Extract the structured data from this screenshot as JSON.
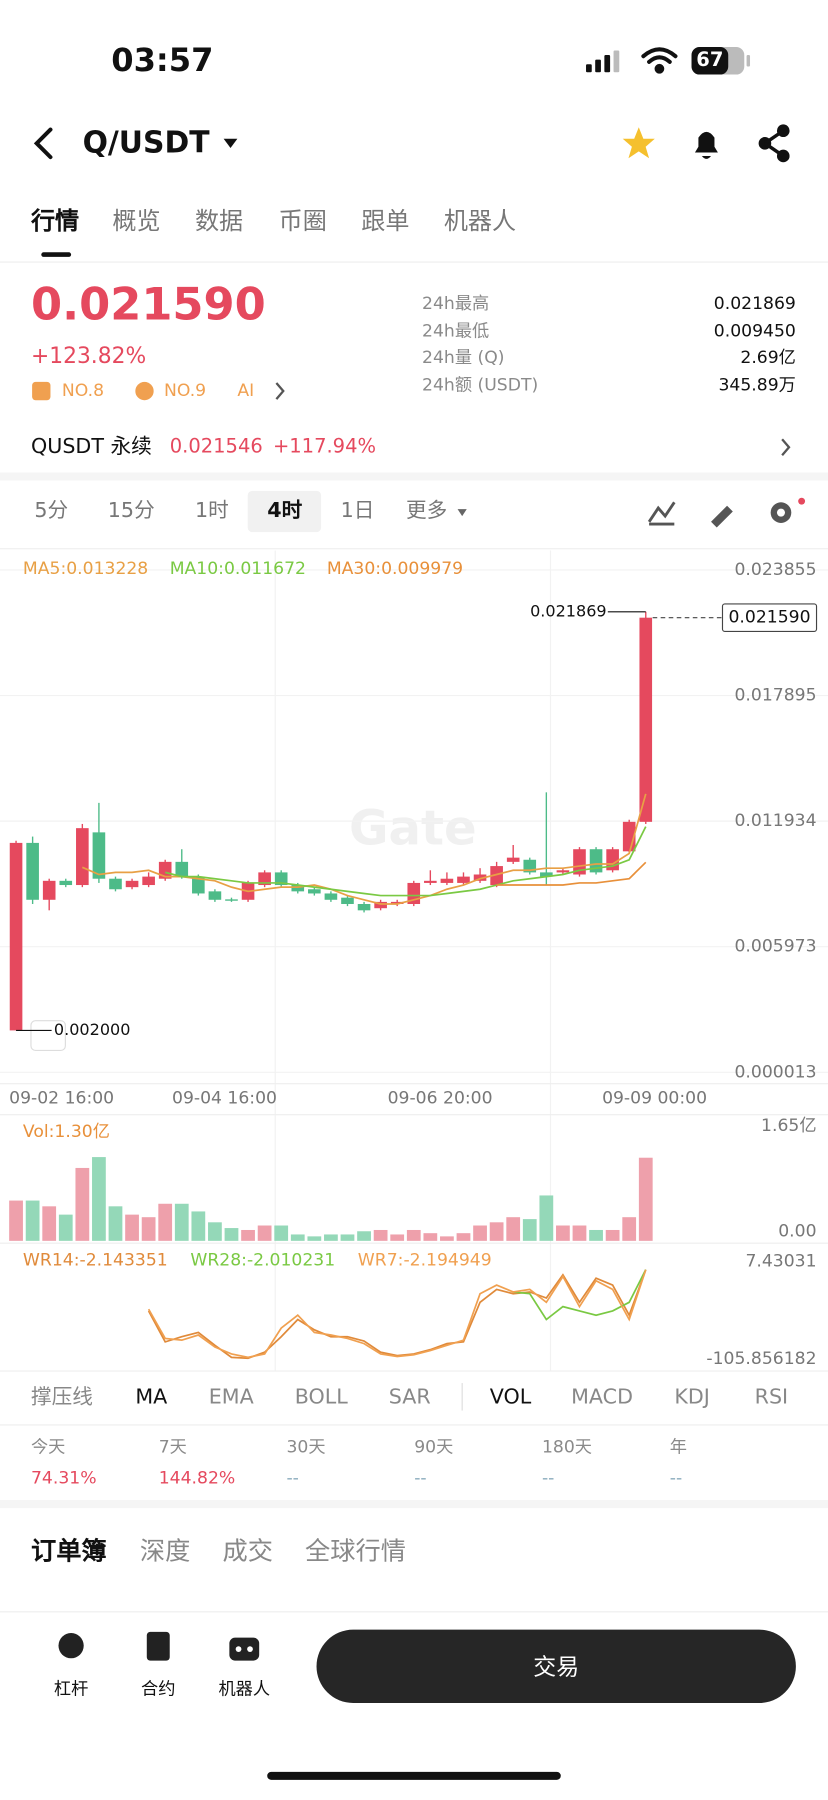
{
  "status_bar": {
    "time": "03:57",
    "battery": "67"
  },
  "header": {
    "pair": "Q/USDT"
  },
  "tabs": [
    "行情",
    "概览",
    "数据",
    "币圈",
    "跟单",
    "机器人"
  ],
  "price": {
    "last": "0.021590",
    "change": "+123.82%",
    "badges": [
      "NO.8",
      "NO.9",
      "AI"
    ]
  },
  "stats": [
    {
      "label": "24h最高",
      "value": "0.021869"
    },
    {
      "label": "24h最低",
      "value": "0.009450"
    },
    {
      "label": "24h量 (Q)",
      "value": "2.69亿"
    },
    {
      "label": "24h额 (USDT)",
      "value": "345.89万"
    }
  ],
  "perpetual": {
    "name": "QUSDT 永续",
    "price": "0.021546",
    "change": "+117.94%"
  },
  "intervals": [
    "5分",
    "15分",
    "1时",
    "4时",
    "1日",
    "更多"
  ],
  "chart": {
    "type": "candlestick",
    "watermark": "Gate",
    "ma_labels": [
      "MA5:0.013228",
      "MA10:0.011672",
      "MA30:0.009979"
    ],
    "x_labels": [
      "09-02 16:00",
      "09-04 16:00",
      "09-06 20:00",
      "09-09 00:00"
    ],
    "ylim": [
      1.3e-05,
      0.023855
    ],
    "yticks": [
      0.023855,
      0.017895,
      0.011934,
      0.005973,
      1.3e-05
    ],
    "current_price": {
      "value": 0.02159,
      "label": "0.021590"
    },
    "high_marker": 0.021869,
    "low_marker": {
      "value": 0.002,
      "label": "0.002000"
    },
    "up_color": "#e5495e",
    "down_color": "#4dbb88",
    "open": [
      0.002,
      0.0109,
      0.0082,
      0.0091,
      0.0089,
      0.0114,
      0.0092,
      0.0088,
      0.0089,
      0.0092,
      0.01,
      0.0093,
      0.0086,
      0.00822,
      0.0082,
      0.0089,
      0.0095,
      0.0089,
      0.0087,
      0.0085,
      0.0083,
      0.008,
      0.0078,
      0.008,
      0.008,
      0.009,
      0.009,
      0.009,
      0.0091,
      0.0089,
      0.01,
      0.0101,
      0.0095,
      0.0095,
      0.0094,
      0.0106,
      0.0096,
      0.0105,
      0.0119
    ],
    "high": [
      0.011,
      0.0112,
      0.0092,
      0.0092,
      0.0118,
      0.0128,
      0.0093,
      0.0092,
      0.0095,
      0.0101,
      0.0106,
      0.0094,
      0.0087,
      0.0083,
      0.0091,
      0.0096,
      0.0096,
      0.009,
      0.0088,
      0.0086,
      0.0084,
      0.0081,
      0.0082,
      0.0082,
      0.0091,
      0.0096,
      0.0095,
      0.0095,
      0.0097,
      0.01,
      0.0108,
      0.0102,
      0.0133,
      0.0097,
      0.0107,
      0.0107,
      0.0107,
      0.012,
      0.021869
    ],
    "low": [
      0.002,
      0.008,
      0.0077,
      0.0088,
      0.0088,
      0.009,
      0.0086,
      0.0087,
      0.0088,
      0.0091,
      0.0092,
      0.0084,
      0.0081,
      0.0081,
      0.0081,
      0.0088,
      0.0088,
      0.0085,
      0.0084,
      0.0081,
      0.0079,
      0.0076,
      0.0077,
      0.0079,
      0.0079,
      0.0089,
      0.0089,
      0.0089,
      0.009,
      0.0088,
      0.0099,
      0.0094,
      0.0089,
      0.0094,
      0.0093,
      0.0094,
      0.0095,
      0.0104,
      0.0118
    ],
    "close": [
      0.0109,
      0.0082,
      0.0091,
      0.0089,
      0.0116,
      0.0092,
      0.0087,
      0.0091,
      0.0093,
      0.01,
      0.0093,
      0.0085,
      0.0082,
      0.0082,
      0.009,
      0.0095,
      0.0089,
      0.0086,
      0.0085,
      0.0082,
      0.008,
      0.0077,
      0.0081,
      0.0081,
      0.009,
      0.0091,
      0.0092,
      0.0093,
      0.0094,
      0.0098,
      0.0102,
      0.0095,
      0.0093,
      0.0096,
      0.0106,
      0.0095,
      0.0106,
      0.0119,
      0.02159
    ],
    "ma_series": [
      {
        "name": "MA5",
        "color": "#e8a045",
        "values": [
          null,
          null,
          null,
          null,
          0.00974,
          0.0094,
          0.0095,
          0.0095,
          0.0096,
          0.0093,
          0.0093,
          0.0092,
          0.0091,
          0.0088,
          0.0086,
          0.0087,
          0.0088,
          0.0088,
          0.0089,
          0.0087,
          0.0084,
          0.0082,
          0.008,
          0.008,
          0.0082,
          0.0084,
          0.0087,
          0.0089,
          0.0092,
          0.0094,
          0.0096,
          0.0096,
          0.0097,
          0.0097,
          0.0098,
          0.0099,
          0.0099,
          0.0104,
          0.013228
        ]
      },
      {
        "name": "MA10",
        "color": "#7ac943",
        "values": [
          null,
          null,
          null,
          null,
          null,
          null,
          null,
          null,
          null,
          0.0095,
          0.0093,
          0.0093,
          0.0092,
          0.0091,
          0.009,
          0.009,
          0.009,
          0.0089,
          0.0088,
          0.0087,
          0.0086,
          0.0085,
          0.0084,
          0.0084,
          0.0084,
          0.0084,
          0.0085,
          0.0086,
          0.0087,
          0.0089,
          0.0091,
          0.0092,
          0.0093,
          0.0094,
          0.0096,
          0.0097,
          0.0098,
          0.0101,
          0.011672
        ]
      },
      {
        "name": "MA30",
        "color": "#e8903a",
        "values": [
          null,
          null,
          null,
          null,
          null,
          null,
          null,
          null,
          null,
          null,
          null,
          null,
          null,
          null,
          null,
          null,
          null,
          null,
          null,
          null,
          null,
          null,
          null,
          null,
          null,
          null,
          null,
          null,
          null,
          0.0089,
          0.0089,
          0.0089,
          0.0089,
          0.0089,
          0.009,
          0.009,
          0.0091,
          0.0092,
          0.009979
        ]
      }
    ],
    "volume": {
      "label": "Vol:1.30亿",
      "ylim": [
        0,
        1.65
      ],
      "yticks": [
        {
          "value": 1.65,
          "label": "1.65亿"
        },
        {
          "value": 0,
          "label": "0.00"
        }
      ],
      "up_color": "#eea0ab",
      "down_color": "#94d8b8",
      "values": [
        0.63,
        0.63,
        0.54,
        0.41,
        1.14,
        1.31,
        0.54,
        0.41,
        0.37,
        0.58,
        0.58,
        0.46,
        0.29,
        0.2,
        0.17,
        0.24,
        0.24,
        0.1,
        0.07,
        0.1,
        0.1,
        0.15,
        0.17,
        0.1,
        0.17,
        0.12,
        0.07,
        0.12,
        0.24,
        0.29,
        0.37,
        0.34,
        0.71,
        0.24,
        0.24,
        0.17,
        0.17,
        0.37,
        1.3
      ]
    },
    "wr": {
      "ylim": [
        -105.856182,
        7.43031
      ],
      "yticks": [
        7.43031,
        -105.856182
      ],
      "series": [
        {
          "name": "WR14:-2.143351",
          "color": "#e08a3a",
          "values": [
            null,
            null,
            null,
            null,
            null,
            null,
            null,
            null,
            -50,
            -86,
            -80,
            -75,
            -90,
            -104,
            -105,
            -98,
            -80,
            -60,
            -72,
            -80,
            -80,
            -85,
            -98,
            -102,
            -100,
            -95,
            -88,
            -86,
            -40,
            -25,
            -30,
            -28,
            -35,
            -8,
            -40,
            -12,
            -20,
            -55,
            -2.143351
          ]
        },
        {
          "name": "WR28:-2.010231",
          "color": "#7ac943",
          "values": [
            null,
            null,
            null,
            null,
            null,
            null,
            null,
            null,
            null,
            null,
            null,
            null,
            null,
            null,
            null,
            null,
            null,
            null,
            null,
            null,
            null,
            null,
            null,
            null,
            null,
            null,
            null,
            null,
            null,
            null,
            -28,
            -30,
            -60,
            -45,
            -50,
            -55,
            -50,
            -40,
            -2.010231
          ]
        },
        {
          "name": "WR7:-2.194949",
          "color": "#f0a050",
          "values": [
            null,
            null,
            null,
            null,
            null,
            null,
            null,
            null,
            -48,
            -82,
            -84,
            -78,
            -92,
            -100,
            -104,
            -100,
            -70,
            -55,
            -75,
            -78,
            -82,
            -88,
            -100,
            -103,
            -101,
            -96,
            -90,
            -84,
            -30,
            -20,
            -28,
            -25,
            -40,
            -10,
            -45,
            -15,
            -25,
            -60,
            -2.194949
          ]
        }
      ]
    }
  },
  "indicators": [
    "撑压线",
    "MA",
    "EMA",
    "BOLL",
    "SAR",
    "VOL",
    "MACD",
    "KDJ",
    "RSI"
  ],
  "performance": [
    {
      "period": "今天",
      "value": "74.31%"
    },
    {
      "period": "7天",
      "value": "144.82%"
    },
    {
      "period": "30天",
      "value": "--"
    },
    {
      "period": "90天",
      "value": "--"
    },
    {
      "period": "180天",
      "value": "--"
    },
    {
      "period": "年",
      "value": "--"
    }
  ],
  "order_tabs": [
    "订单簿",
    "深度",
    "成交",
    "全球行情"
  ],
  "bottom_bar": {
    "items": [
      "杠杆",
      "合约",
      "机器人"
    ],
    "trade_button": "交易"
  }
}
